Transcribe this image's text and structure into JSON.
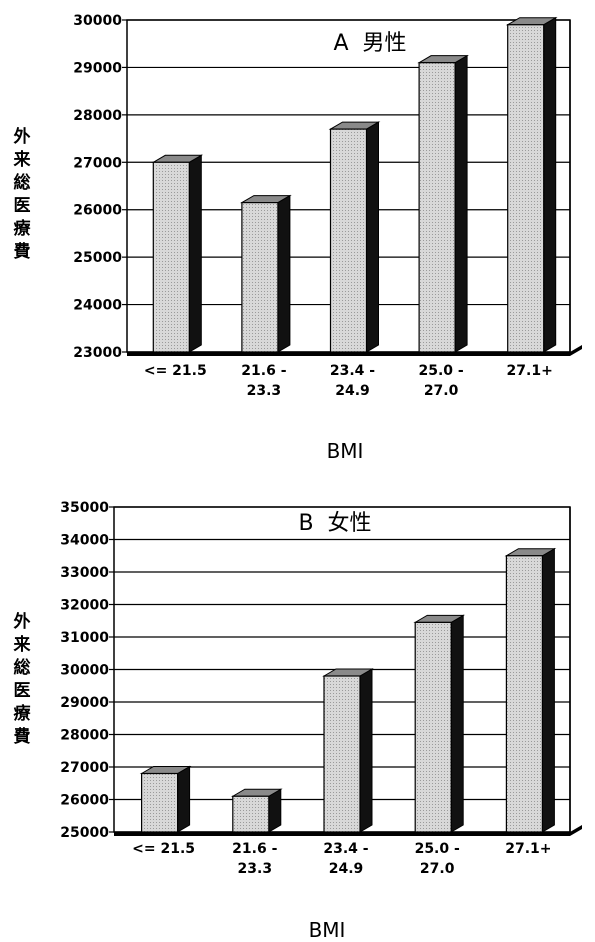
{
  "chart_data": [
    {
      "type": "bar",
      "title": "A  男性",
      "ylabel": "外来総医療費",
      "xlabel": "BMI",
      "categories": [
        "<= 21.5",
        "21.6 -\n23.3",
        "23.4 -\n24.9",
        "25.0 -\n27.0",
        "27.1+"
      ],
      "values": [
        27000,
        26150,
        27700,
        29100,
        29900
      ],
      "yticks": [
        23000,
        24000,
        25000,
        26000,
        27000,
        28000,
        29000,
        30000
      ],
      "ylim": [
        23000,
        30000
      ],
      "grid": true
    },
    {
      "type": "bar",
      "title": "B  女性",
      "ylabel": "外来総医療費",
      "xlabel": "BMI",
      "categories": [
        "<= 21.5",
        "21.6 -\n23.3",
        "23.4 -\n24.9",
        "25.0 -\n27.0",
        "27.1+"
      ],
      "values": [
        26800,
        26100,
        29800,
        31450,
        33500
      ],
      "yticks": [
        25000,
        26000,
        27000,
        28000,
        29000,
        30000,
        31000,
        32000,
        33000,
        34000,
        35000
      ],
      "ylim": [
        25000,
        35000
      ],
      "grid": true
    }
  ]
}
